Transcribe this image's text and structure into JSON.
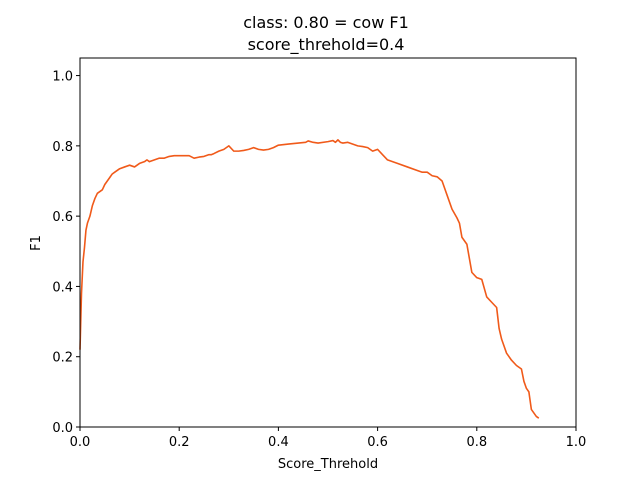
{
  "chart_data": {
    "type": "line",
    "title_line1": "class: 0.80 = cow F1",
    "title_line2": "score_threhold=0.4",
    "xlabel": "Score_Threhold",
    "ylabel": "F1",
    "xlim": [
      0.0,
      1.0
    ],
    "ylim": [
      0.0,
      1.05
    ],
    "xticks": [
      "0.0",
      "0.2",
      "0.4",
      "0.6",
      "0.8",
      "1.0"
    ],
    "yticks": [
      "0.0",
      "0.2",
      "0.4",
      "0.6",
      "0.8",
      "1.0"
    ],
    "grid": false,
    "series": [
      {
        "color": "#f05a1a",
        "x": [
          0.0,
          0.003,
          0.006,
          0.009,
          0.012,
          0.015,
          0.02,
          0.025,
          0.03,
          0.035,
          0.04,
          0.045,
          0.05,
          0.055,
          0.06,
          0.065,
          0.07,
          0.08,
          0.09,
          0.1,
          0.11,
          0.12,
          0.13,
          0.135,
          0.14,
          0.15,
          0.16,
          0.17,
          0.18,
          0.19,
          0.2,
          0.21,
          0.22,
          0.23,
          0.24,
          0.25,
          0.26,
          0.265,
          0.27,
          0.28,
          0.29,
          0.3,
          0.31,
          0.32,
          0.33,
          0.34,
          0.35,
          0.36,
          0.37,
          0.38,
          0.39,
          0.4,
          0.42,
          0.44,
          0.455,
          0.46,
          0.47,
          0.48,
          0.5,
          0.51,
          0.515,
          0.52,
          0.525,
          0.53,
          0.54,
          0.55,
          0.56,
          0.57,
          0.58,
          0.59,
          0.6,
          0.61,
          0.62,
          0.64,
          0.66,
          0.68,
          0.69,
          0.7,
          0.71,
          0.72,
          0.73,
          0.74,
          0.75,
          0.76,
          0.765,
          0.77,
          0.775,
          0.78,
          0.79,
          0.8,
          0.81,
          0.82,
          0.83,
          0.84,
          0.845,
          0.85,
          0.86,
          0.87,
          0.88,
          0.89,
          0.895,
          0.9,
          0.905,
          0.91,
          0.92,
          0.925
        ],
        "y": [
          0.22,
          0.38,
          0.47,
          0.51,
          0.56,
          0.58,
          0.6,
          0.63,
          0.65,
          0.665,
          0.67,
          0.675,
          0.69,
          0.7,
          0.71,
          0.72,
          0.725,
          0.735,
          0.74,
          0.745,
          0.74,
          0.75,
          0.755,
          0.76,
          0.755,
          0.76,
          0.765,
          0.765,
          0.77,
          0.772,
          0.772,
          0.772,
          0.772,
          0.765,
          0.768,
          0.77,
          0.775,
          0.775,
          0.778,
          0.785,
          0.79,
          0.8,
          0.785,
          0.785,
          0.787,
          0.79,
          0.795,
          0.79,
          0.788,
          0.79,
          0.795,
          0.802,
          0.805,
          0.808,
          0.81,
          0.814,
          0.81,
          0.808,
          0.812,
          0.815,
          0.81,
          0.817,
          0.81,
          0.808,
          0.81,
          0.805,
          0.8,
          0.798,
          0.795,
          0.785,
          0.79,
          0.775,
          0.76,
          0.75,
          0.74,
          0.73,
          0.725,
          0.725,
          0.715,
          0.712,
          0.7,
          0.66,
          0.62,
          0.595,
          0.58,
          0.54,
          0.53,
          0.52,
          0.44,
          0.425,
          0.42,
          0.37,
          0.355,
          0.34,
          0.28,
          0.25,
          0.21,
          0.19,
          0.175,
          0.165,
          0.13,
          0.11,
          0.1,
          0.05,
          0.03,
          0.025
        ]
      }
    ]
  }
}
